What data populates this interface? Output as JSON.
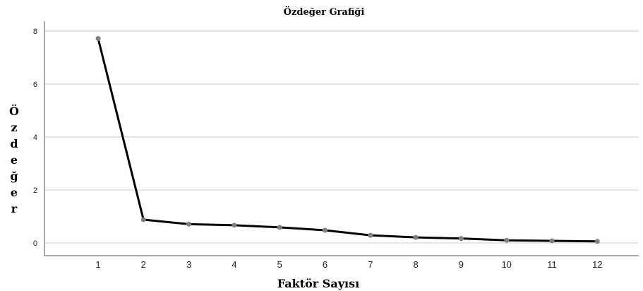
{
  "chart_data": {
    "type": "line",
    "title": "Özdeğer Grafiği",
    "xlabel": "Faktör Sayısı",
    "ylabel": "Özdeğer",
    "x": [
      1,
      2,
      3,
      4,
      5,
      6,
      7,
      8,
      9,
      10,
      11,
      12
    ],
    "series": [
      {
        "values": [
          7.72,
          0.88,
          0.71,
          0.67,
          0.59,
          0.48,
          0.29,
          0.21,
          0.17,
          0.1,
          0.08,
          0.06
        ]
      }
    ],
    "ylim": [
      0,
      8.2
    ],
    "yticks": [
      0,
      2,
      4,
      6,
      8
    ],
    "grid": true,
    "line_color": "#000000",
    "marker_color": "#808080",
    "grid_color": "#cccccc"
  }
}
